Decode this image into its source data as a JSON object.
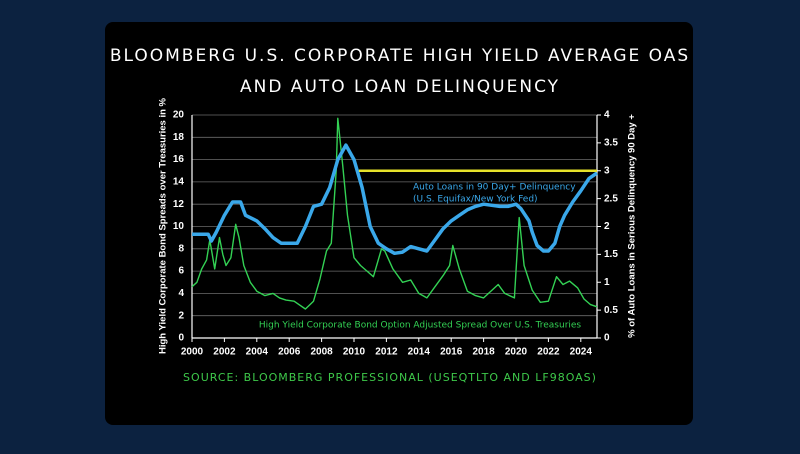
{
  "chart_data": {
    "type": "line",
    "title": [
      "BLOOMBERG U.S. CORPORATE HIGH YIELD AVERAGE OAS",
      "AND AUTO LOAN DELINQUENCY"
    ],
    "ylabel": "High Yield Corporate Bond Spreads over Treasuries in %",
    "y2label": "% of Auto Loans in Serious Delinquency 90 Day +",
    "source": "SOURCE: BLOOMBERG PROFESSIONAL (USEQTLTO AND LF98OAS)",
    "annotations": [
      "(U.S. Equifax/New York Fed)"
    ],
    "xlim": [
      2000,
      2025
    ],
    "xticks": [
      2000,
      2002,
      2004,
      2006,
      2008,
      2010,
      2012,
      2014,
      2016,
      2018,
      2020,
      2022,
      2024
    ],
    "ylim": [
      0,
      20
    ],
    "yticks": [
      0,
      2,
      4,
      6,
      8,
      10,
      12,
      14,
      16,
      18,
      20
    ],
    "y2lim": [
      0,
      4
    ],
    "y2ticks": [
      0,
      0.5,
      1,
      1.5,
      2,
      2.5,
      3,
      3.5,
      4
    ],
    "grid": true,
    "series": [
      {
        "name": "High Yield Corporate Bond Option Adjusted Spread Over U.S. Treasuries",
        "color": "#33d154",
        "x": [
          2000,
          2000.3,
          2000.6,
          2000.9,
          2001.1,
          2001.4,
          2001.7,
          2001.9,
          2002.1,
          2002.4,
          2002.7,
          2002.9,
          2003.2,
          2003.6,
          2004,
          2004.5,
          2005,
          2005.4,
          2005.8,
          2006.3,
          2007,
          2007.5,
          2007.9,
          2008.3,
          2008.6,
          2008.9,
          2009.0,
          2009.3,
          2009.6,
          2010,
          2010.4,
          2010.8,
          2011.2,
          2011.7,
          2011.9,
          2012.4,
          2013,
          2013.5,
          2014,
          2014.5,
          2015,
          2015.5,
          2015.9,
          2016.1,
          2016.5,
          2017,
          2017.5,
          2018,
          2018.9,
          2019.3,
          2019.9,
          2020.2,
          2020.5,
          2021,
          2021.5,
          2022,
          2022.5,
          2022.9,
          2023.3,
          2023.8,
          2024.2,
          2024.6,
          2025
        ],
        "values": [
          4.6,
          5,
          6.2,
          7,
          8.8,
          6.2,
          9,
          7.5,
          6.5,
          7.2,
          10.2,
          9,
          6.5,
          5,
          4.2,
          3.8,
          4,
          3.6,
          3.4,
          3.3,
          2.6,
          3.3,
          5.3,
          7.8,
          8.5,
          15,
          19.7,
          15.5,
          11,
          7.2,
          6.5,
          6,
          5.5,
          8,
          7.8,
          6.2,
          5,
          5.2,
          4,
          3.6,
          4.6,
          5.6,
          6.5,
          8.3,
          6.2,
          4.2,
          3.8,
          3.6,
          4.8,
          4,
          3.6,
          10.8,
          6.5,
          4.3,
          3.2,
          3.3,
          5.5,
          4.8,
          5.1,
          4.5,
          3.5,
          3,
          2.8
        ]
      },
      {
        "name": "Auto Loans in 90 Day+ Delinquency",
        "color": "#3aa8ea",
        "axis": "y2",
        "x": [
          2000,
          2001,
          2001.2,
          2001.5,
          2002,
          2002.5,
          2003,
          2003.3,
          2004,
          2004.5,
          2005,
          2005.5,
          2006.5,
          2007,
          2007.5,
          2008,
          2008.5,
          2009,
          2009.5,
          2010,
          2010.5,
          2011,
          2011.5,
          2012,
          2012.5,
          2013,
          2013.5,
          2014,
          2014.5,
          2015,
          2015.5,
          2016,
          2016.5,
          2017,
          2017.5,
          2018,
          2019,
          2019.5,
          2020,
          2020.3,
          2020.8,
          2021,
          2021.3,
          2021.7,
          2022,
          2022.4,
          2022.7,
          2023,
          2023.5,
          2024,
          2024.5,
          2025
        ],
        "values": [
          1.86,
          1.86,
          1.74,
          1.9,
          2.2,
          2.44,
          2.44,
          2.2,
          2.1,
          1.96,
          1.8,
          1.7,
          1.7,
          2.0,
          2.36,
          2.4,
          2.7,
          3.2,
          3.46,
          3.2,
          2.7,
          2.0,
          1.7,
          1.6,
          1.52,
          1.54,
          1.64,
          1.6,
          1.56,
          1.76,
          1.96,
          2.1,
          2.2,
          2.3,
          2.36,
          2.4,
          2.36,
          2.36,
          2.4,
          2.32,
          2.1,
          1.9,
          1.66,
          1.56,
          1.56,
          1.7,
          2.0,
          2.2,
          2.44,
          2.64,
          2.86,
          2.96
        ]
      },
      {
        "color": "#e6e22a",
        "axis": "y2",
        "x": [
          2010.3,
          2025
        ],
        "values": [
          3.0,
          3.0
        ]
      }
    ]
  }
}
